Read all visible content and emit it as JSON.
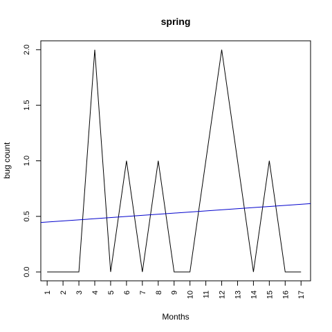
{
  "chart_data": {
    "type": "line",
    "title": "spring",
    "xlabel": "Months",
    "ylabel": "bug count",
    "x": [
      1,
      2,
      3,
      4,
      5,
      6,
      7,
      8,
      9,
      10,
      11,
      12,
      13,
      14,
      15,
      16,
      17
    ],
    "xticks": [
      "1",
      "2",
      "3",
      "4",
      "5",
      "6",
      "7",
      "8",
      "9",
      "10",
      "11",
      "12",
      "13",
      "14",
      "15",
      "16",
      "17"
    ],
    "yticks": [
      "0.0",
      "0.5",
      "1.0",
      "1.5",
      "2.0"
    ],
    "xlim": [
      0.6,
      17.6
    ],
    "ylim": [
      -0.08,
      2.08
    ],
    "grid": false,
    "series": [
      {
        "values": [
          0,
          0,
          0,
          2,
          0,
          1,
          0,
          1,
          0,
          0,
          1,
          2,
          1,
          0,
          1,
          0,
          0
        ],
        "color": "#000000"
      }
    ],
    "trendline": {
      "start": [
        0.6,
        0.445
      ],
      "end": [
        17.6,
        0.615
      ],
      "color": "#0000cc"
    }
  }
}
